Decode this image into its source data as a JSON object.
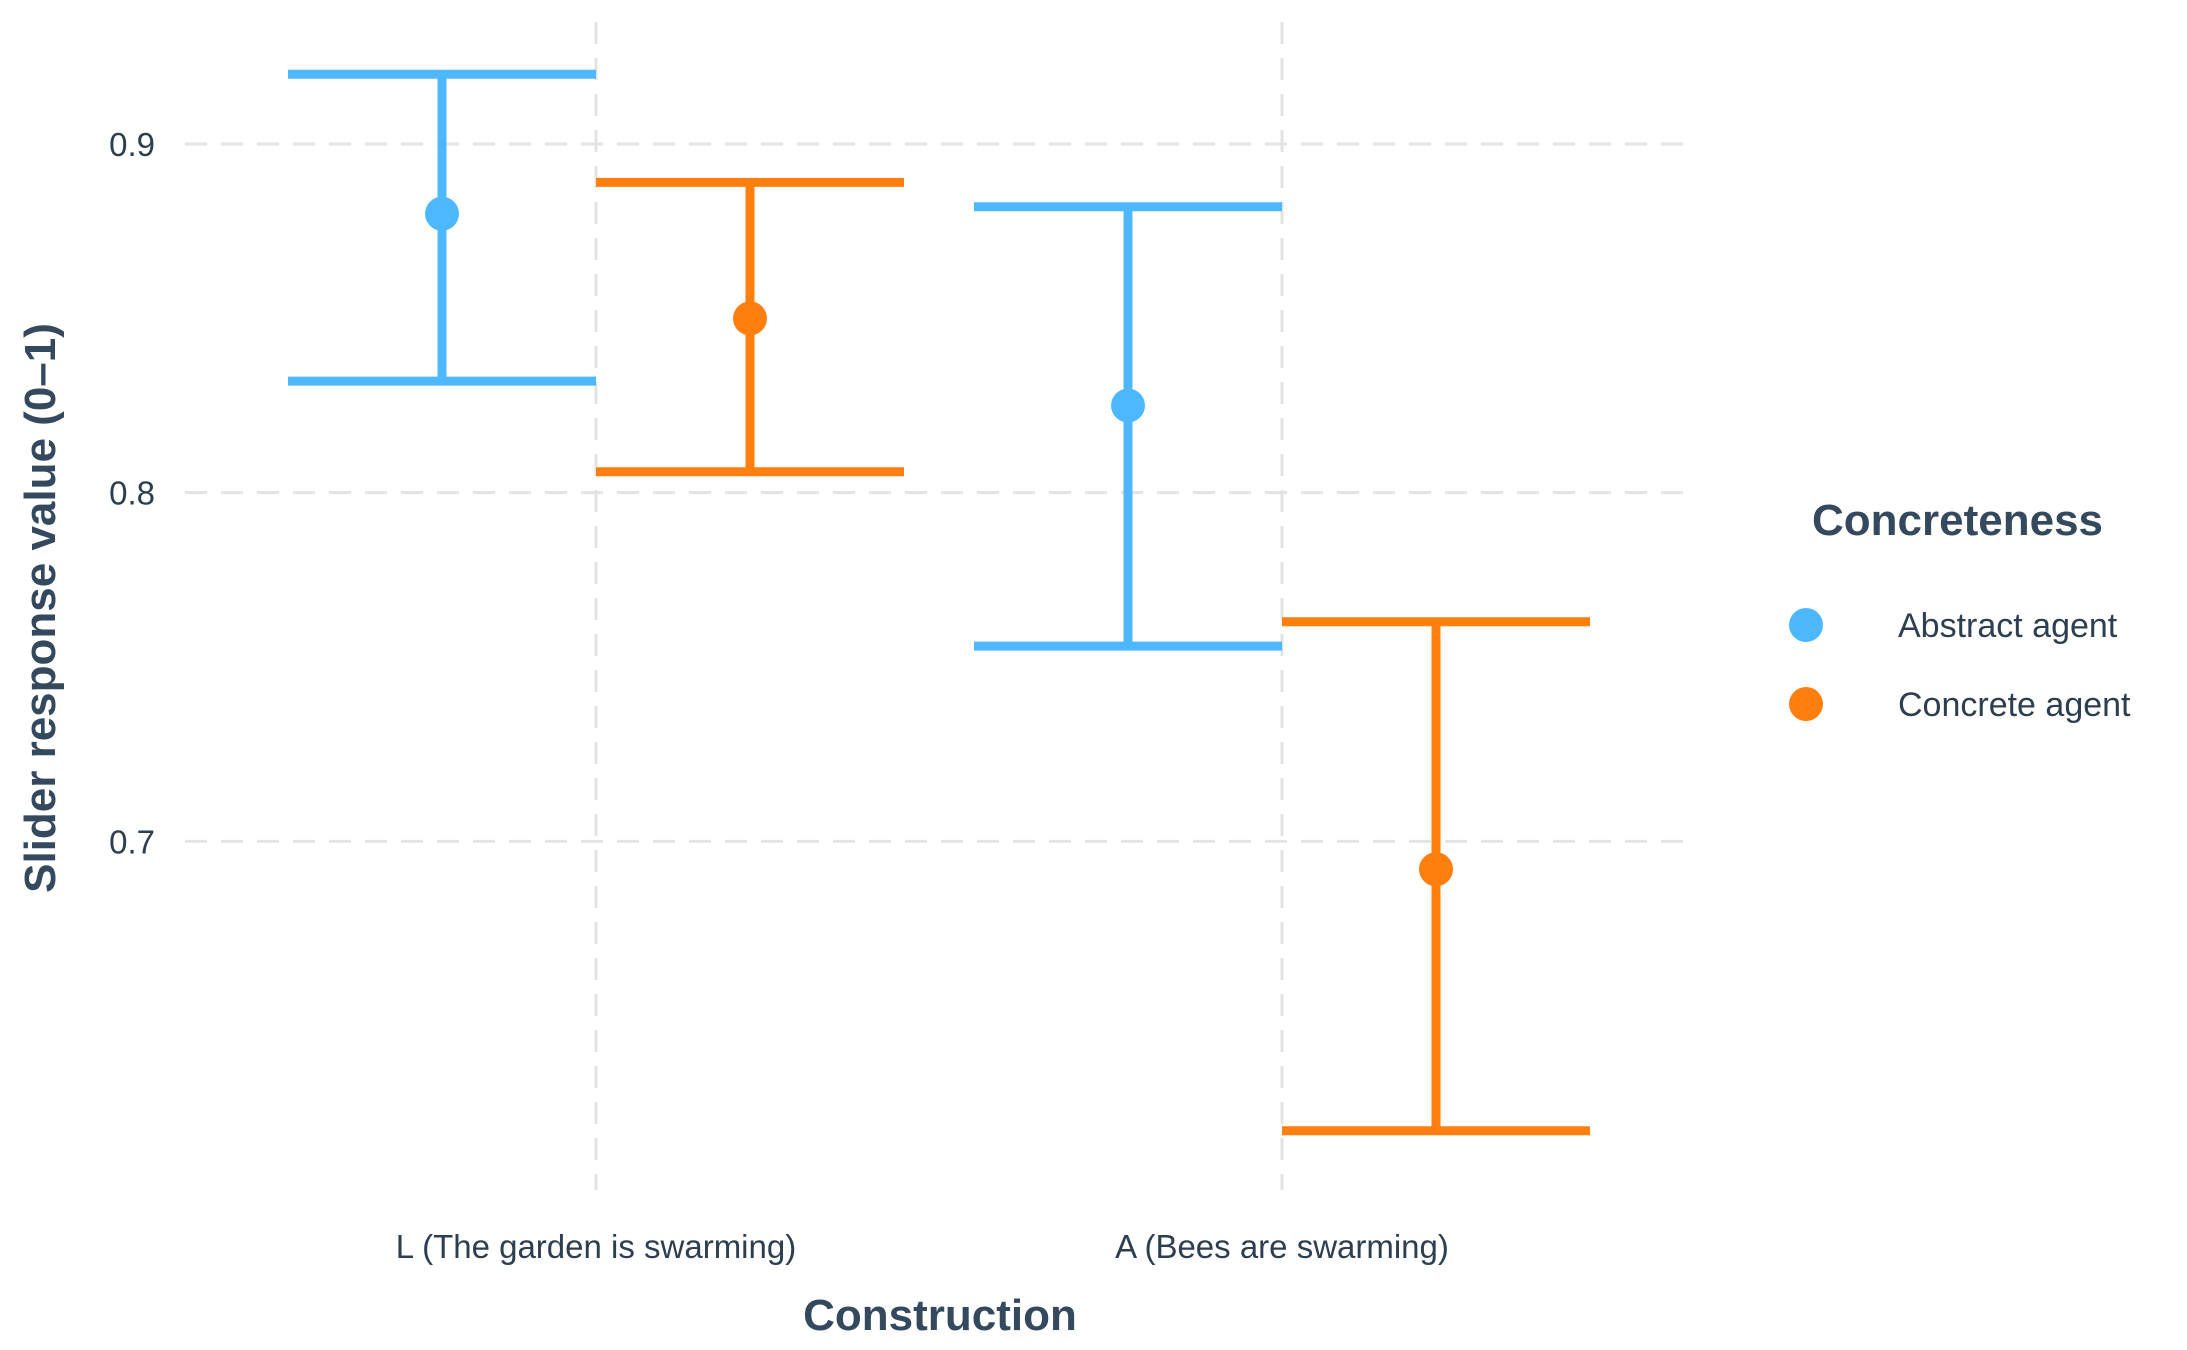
{
  "chart_data": {
    "type": "errorbar",
    "categories": [
      "L (The garden is swarming)",
      "A (Bees are swarming)"
    ],
    "series": [
      {
        "name": "Abstract agent",
        "color": "#4db8ff",
        "points": [
          {
            "category": "L (The garden is swarming)",
            "mean": 0.88,
            "lower": 0.832,
            "upper": 0.92
          },
          {
            "category": "A (Bees are swarming)",
            "mean": 0.825,
            "lower": 0.756,
            "upper": 0.882
          }
        ]
      },
      {
        "name": "Concrete agent",
        "color": "#ff7f0e",
        "points": [
          {
            "category": "L (The garden is swarming)",
            "mean": 0.85,
            "lower": 0.806,
            "upper": 0.889
          },
          {
            "category": "A (Bees are swarming)",
            "mean": 0.692,
            "lower": 0.617,
            "upper": 0.763
          }
        ]
      }
    ],
    "xlabel": "Construction",
    "ylabel": "Slider response value (0–1)",
    "yticks": [
      0.7,
      0.8,
      0.9
    ],
    "ytick_labels": [
      "0.7",
      "0.8",
      "0.9"
    ],
    "ylim": [
      0.6,
      0.935
    ],
    "grid": true,
    "grid_style": "dashed",
    "legend": {
      "title": "Concreteness",
      "position": "right",
      "entries": [
        "Abstract agent",
        "Concrete agent"
      ]
    }
  }
}
